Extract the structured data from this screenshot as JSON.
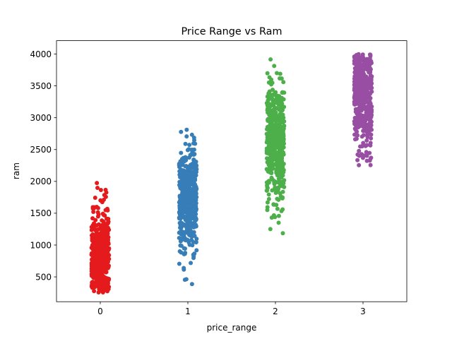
{
  "chart_data": {
    "type": "scatter",
    "subtype": "strip",
    "title": "Price Range vs Ram",
    "xlabel": "price_range",
    "ylabel": "ram",
    "categories": [
      "0",
      "1",
      "2",
      "3"
    ],
    "xlim": [
      -0.5,
      3.5
    ],
    "ylim": [
      110,
      4210
    ],
    "yticks": [
      500,
      1000,
      1500,
      2000,
      2500,
      3000,
      3500,
      4000
    ],
    "grid": false,
    "legend": "none",
    "jitter": 0.1,
    "series": [
      {
        "category": "0",
        "color": "#e41a1c",
        "count": 500,
        "min": 256,
        "max": 1974,
        "mean": 785,
        "sd": 360
      },
      {
        "category": "1",
        "color": "#377eb8",
        "count": 500,
        "min": 387,
        "max": 2811,
        "mean": 1680,
        "sd": 430
      },
      {
        "category": "2",
        "color": "#4daf4a",
        "count": 500,
        "min": 1185,
        "max": 3916,
        "mean": 2580,
        "sd": 470
      },
      {
        "category": "3",
        "color": "#984ea3",
        "count": 500,
        "min": 2255,
        "max": 3998,
        "mean": 3450,
        "sd": 420
      }
    ]
  }
}
